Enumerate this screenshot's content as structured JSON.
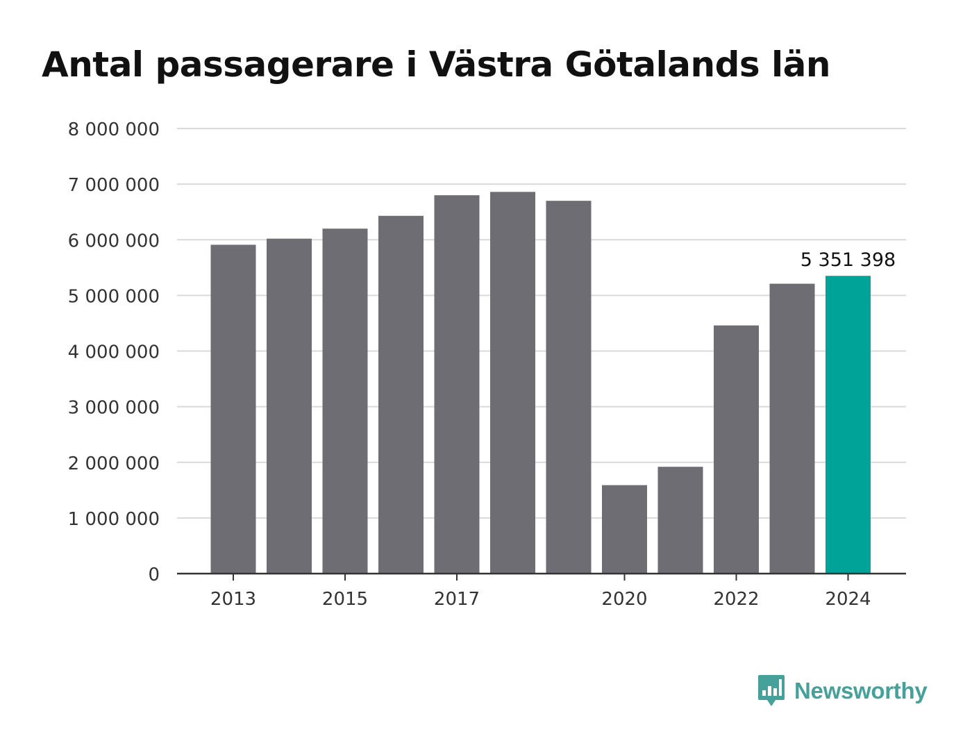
{
  "title": "Antal passagerare i Västra Götalands län",
  "brand": {
    "name": "Newsworthy",
    "icon": "bar-chart-speech-bubble-icon",
    "color": "#45a19a"
  },
  "colors": {
    "bar": "#6e6d73",
    "highlight": "#00a398",
    "grid": "#d9d9d9",
    "axis": "#333333",
    "text": "#333333"
  },
  "chart_data": {
    "type": "bar",
    "x": [
      2013,
      2014,
      2015,
      2016,
      2017,
      2018,
      2019,
      2020,
      2021,
      2022,
      2023,
      2024
    ],
    "values": [
      5910000,
      6020000,
      6200000,
      6430000,
      6800000,
      6860000,
      6700000,
      1590000,
      1920000,
      4460000,
      5210000,
      5351398
    ],
    "highlight_index": 11,
    "data_labels": [
      {
        "index": 11,
        "text": "5 351 398"
      }
    ],
    "xticks": [
      "2013",
      "2015",
      "2017",
      "2020",
      "2022",
      "2024"
    ],
    "yticks": [
      "0",
      "1 000 000",
      "2 000 000",
      "3 000 000",
      "4 000 000",
      "5 000 000",
      "6 000 000",
      "7 000 000",
      "8 000 000"
    ],
    "ylim": [
      0,
      8000000
    ],
    "grid": true,
    "legend": "none"
  }
}
